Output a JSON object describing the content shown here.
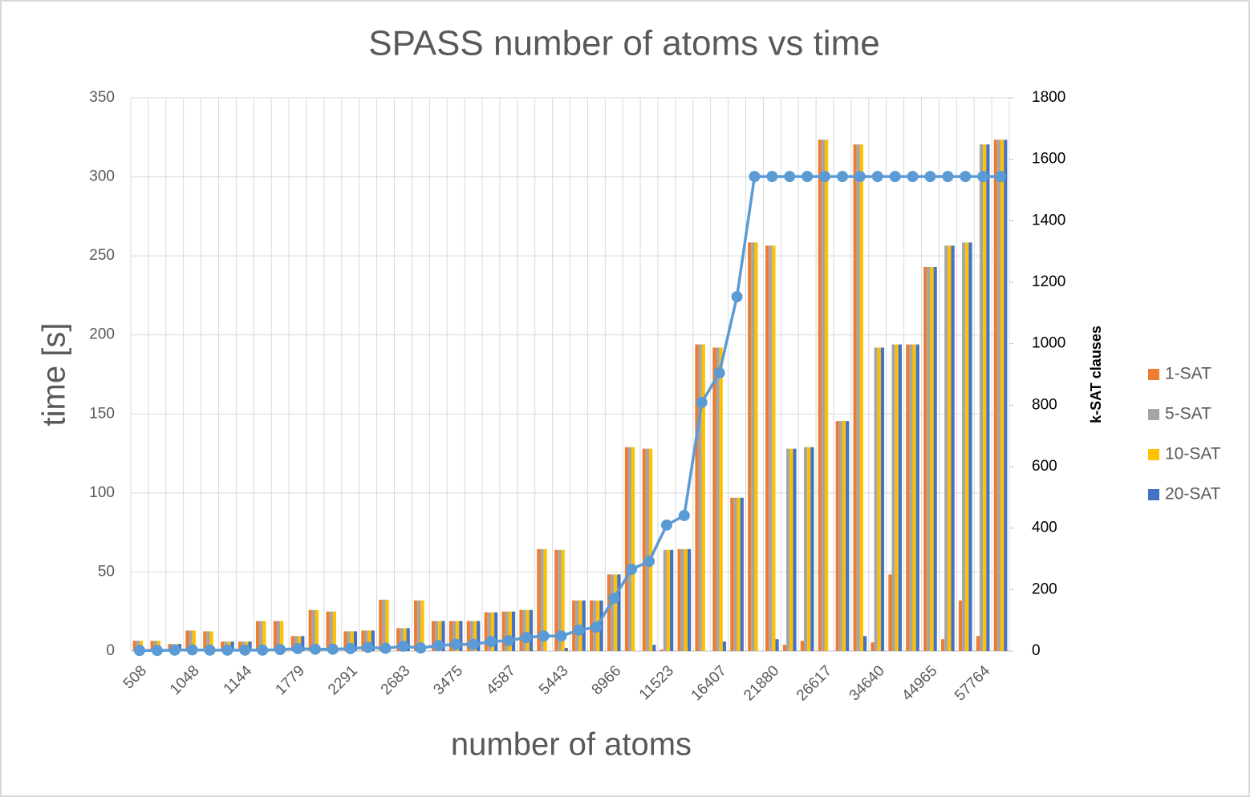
{
  "chart_data": {
    "type": "bar",
    "title": "SPASS number of atoms vs time",
    "xlabel": "number of atoms",
    "ylabel": "time [s]",
    "y2label": "k-SAT clauses",
    "categories": [
      "508",
      null,
      null,
      "1048",
      null,
      null,
      "1144",
      null,
      null,
      "1779",
      null,
      null,
      "2291",
      null,
      null,
      "2683",
      null,
      null,
      "3475",
      null,
      null,
      "4587",
      null,
      null,
      "5443",
      null,
      null,
      "8966",
      null,
      null,
      "11523",
      null,
      null,
      "16407",
      null,
      null,
      "21880",
      null,
      null,
      "26617",
      null,
      null,
      "34640",
      null,
      null,
      "44965",
      null,
      null,
      "57764",
      null
    ],
    "series": [
      {
        "name": "1-SAT",
        "color": "#ED7D31",
        "values": [
          6.5,
          6.5,
          4.5,
          13,
          12.5,
          6,
          6,
          19,
          19,
          9.5,
          26,
          25,
          12.5,
          13,
          32.5,
          14.5,
          32,
          19,
          19,
          19,
          24.5,
          25,
          26,
          64.5,
          64,
          32,
          32,
          48.5,
          129,
          128,
          1,
          64.5,
          194,
          192,
          97,
          258.5,
          256.5,
          4,
          6.5,
          323.5,
          145.5,
          320.5,
          5.5,
          48.5,
          194,
          243,
          7.5,
          32,
          9.5,
          323.5
        ]
      },
      {
        "name": "5-SAT",
        "color": "#A5A5A5",
        "values": [
          6.5,
          6.5,
          4.5,
          13,
          12.5,
          6,
          6,
          19,
          19,
          9.5,
          26,
          25,
          12.5,
          13,
          32.5,
          14.5,
          32,
          19,
          19,
          19,
          24.5,
          25,
          26,
          64.5,
          64,
          32,
          32,
          48.5,
          129,
          128,
          64,
          64.5,
          194,
          192,
          97,
          258.5,
          256.5,
          128,
          129,
          323.5,
          145.5,
          320.5,
          192,
          194,
          194,
          243,
          256.5,
          258.5,
          320.5,
          323.5
        ]
      },
      {
        "name": "10-SAT",
        "color": "#FFC000",
        "values": [
          6.5,
          6.5,
          4.5,
          13,
          12.5,
          6,
          6,
          19,
          19,
          9.5,
          26,
          25,
          12.5,
          13,
          32.5,
          14.5,
          32,
          19,
          19,
          19,
          24.5,
          25,
          26,
          64.5,
          64,
          32,
          32,
          48.5,
          129,
          128,
          64,
          64.5,
          194,
          192,
          97,
          258.5,
          256.5,
          128,
          129,
          323.5,
          145.5,
          320.5,
          192,
          194,
          194,
          243,
          256.5,
          258.5,
          320.5,
          323.5
        ]
      },
      {
        "name": "20-SAT",
        "color": "#4472C4",
        "values": [
          0,
          0,
          4.5,
          0,
          0,
          6,
          6,
          0,
          0,
          9.5,
          0,
          0,
          12.5,
          13,
          0,
          14.5,
          0,
          19,
          19,
          19,
          24.5,
          25,
          26,
          0,
          2,
          32,
          32,
          48.5,
          0,
          4,
          64,
          64.5,
          0,
          6,
          97,
          0,
          7.5,
          128,
          129,
          0,
          145.5,
          9.5,
          192,
          194,
          194,
          243,
          256.5,
          258.5,
          320.5,
          323.5
        ]
      },
      {
        "type": "line",
        "axis": "y2",
        "color": "#5B9BD5",
        "values": [
          2,
          2,
          3,
          4,
          3,
          3,
          3,
          3,
          5,
          8,
          6,
          6,
          8,
          12,
          9,
          16,
          10,
          18,
          22,
          22,
          31,
          34,
          44,
          49,
          49,
          68,
          78,
          172,
          266,
          292,
          410,
          441,
          809,
          905,
          1153,
          1544,
          1544,
          1544,
          1544,
          1544,
          1544,
          1544,
          1544,
          1544,
          1544,
          1544,
          1544,
          1544,
          1544,
          1544
        ]
      }
    ],
    "ylim": [
      0,
      350
    ],
    "yticks": [
      0,
      50,
      100,
      150,
      200,
      250,
      300,
      350
    ],
    "y2lim": [
      0,
      1800
    ],
    "y2ticks": [
      0,
      200,
      400,
      600,
      800,
      1000,
      1200,
      1400,
      1600,
      1800
    ],
    "grid": true,
    "legend": "right"
  }
}
